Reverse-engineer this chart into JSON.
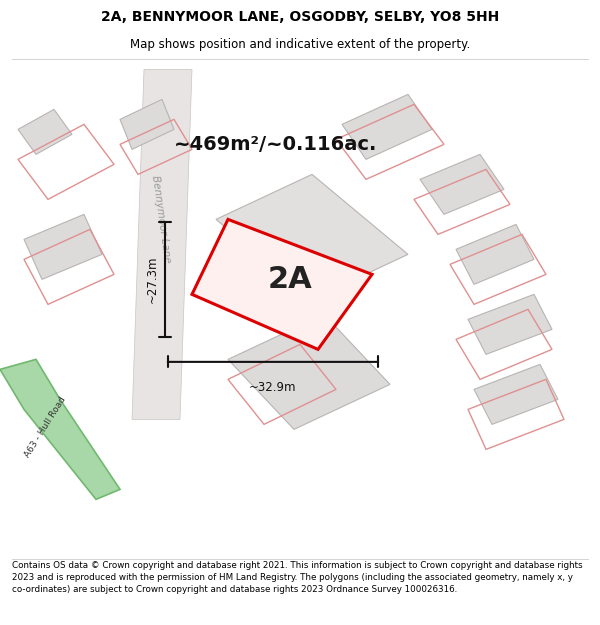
{
  "title": "2A, BENNYMOOR LANE, OSGODBY, SELBY, YO8 5HH",
  "subtitle": "Map shows position and indicative extent of the property.",
  "footer": "Contains OS data © Crown copyright and database right 2021. This information is subject to Crown copyright and database rights 2023 and is reproduced with the permission of HM Land Registry. The polygons (including the associated geometry, namely x, y co-ordinates) are subject to Crown copyright and database rights 2023 Ordnance Survey 100026316.",
  "area_label": "~469m²/~0.116ac.",
  "plot_label": "2A",
  "dim_width": "~32.9m",
  "dim_height": "~27.3m",
  "road_label": "A63 - Hull Road",
  "lane_label": "Bennymoor Lane",
  "map_bg": "#f8f8f8",
  "red_color": "#dd0000",
  "green_road_fill": "#a8d8a8",
  "green_road_edge": "#70b870",
  "building_color": "#dddada",
  "building_edge": "#b8b4b4",
  "pink_edge": "#e09090",
  "dim_color": "#111111",
  "title_fontsize": 10,
  "subtitle_fontsize": 8.5,
  "footer_fontsize": 6.3,
  "area_fontsize": 14,
  "plot_label_fontsize": 22,
  "dim_fontsize": 8.5,
  "lane_fontsize": 7.5,
  "road_fontsize": 6.5
}
